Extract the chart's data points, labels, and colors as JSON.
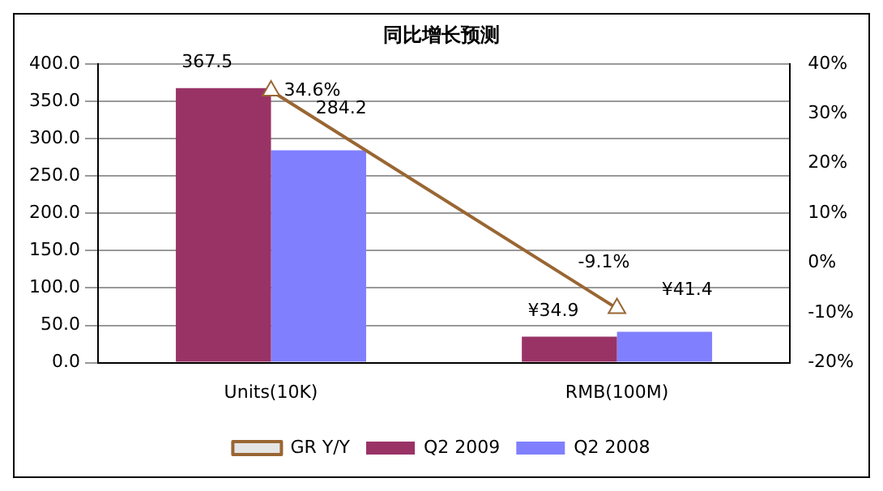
{
  "chart_data": {
    "type": "bar",
    "title": "同比增长预测",
    "categories": [
      "Units(10K)",
      "RMB(100M)"
    ],
    "series": [
      {
        "name": "Q2 2009",
        "color": "#993366",
        "values": [
          367.5,
          34.9
        ],
        "value_labels": [
          "367.5",
          "¥34.9"
        ]
      },
      {
        "name": "Q2 2008",
        "color": "#8080ff",
        "values": [
          284.2,
          41.4
        ],
        "value_labels": [
          "284.2",
          "¥41.4"
        ]
      },
      {
        "name": "GR Y/Y",
        "type": "line",
        "axis": "y2",
        "color": "#996633",
        "values": [
          34.6,
          -9.1
        ],
        "value_labels": [
          "34.6%",
          "-9.1%"
        ],
        "marker": "triangle"
      }
    ],
    "ylim": [
      0,
      400
    ],
    "yticks": [
      {
        "value": 0,
        "label": "0.0"
      },
      {
        "value": 50,
        "label": "50.0"
      },
      {
        "value": 100,
        "label": "100.0"
      },
      {
        "value": 150,
        "label": "150.0"
      },
      {
        "value": 200,
        "label": "200.0"
      },
      {
        "value": 250,
        "label": "250.0"
      },
      {
        "value": 300,
        "label": "300.0"
      },
      {
        "value": 350,
        "label": "350.0"
      },
      {
        "value": 400,
        "label": "400.0"
      }
    ],
    "y2lim": [
      -20,
      40
    ],
    "y2ticks": [
      {
        "value": -20,
        "label": "-20%"
      },
      {
        "value": -10,
        "label": "-10%"
      },
      {
        "value": 0,
        "label": "0%"
      },
      {
        "value": 10,
        "label": "10%"
      },
      {
        "value": 20,
        "label": "20%"
      },
      {
        "value": 30,
        "label": "30%"
      },
      {
        "value": 40,
        "label": "40%"
      }
    ],
    "grid": "y",
    "legend": "bottom"
  }
}
